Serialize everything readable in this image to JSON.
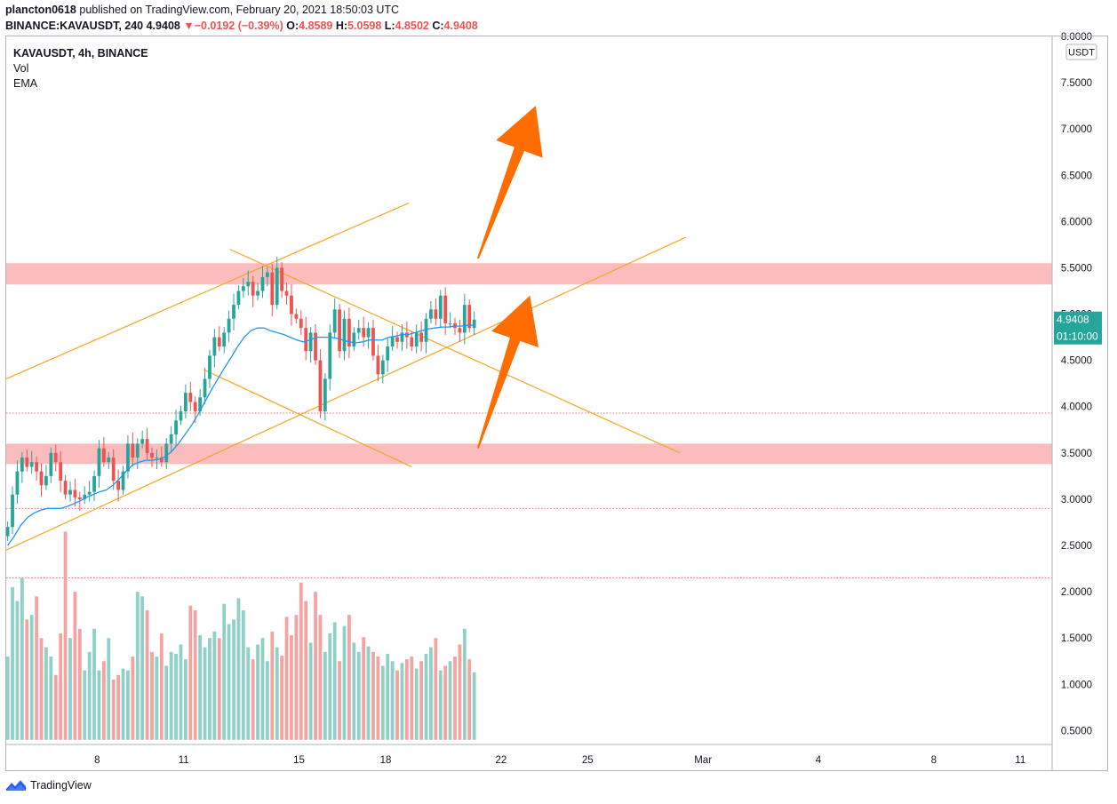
{
  "header": {
    "author": "plancton0618",
    "published_text": " published on TradingView.com, February 20, 2021 18:50:03 UTC"
  },
  "ohlc": {
    "symbol": "BINANCE:KAVAUSDT, 240",
    "price": "4.9408",
    "change_arrow": "▼",
    "change": "−0.0192 (−0.39%)",
    "o_label": "O:",
    "o": "4.8589",
    "h_label": "H:",
    "h": "5.0598",
    "l_label": "L:",
    "l": "4.8502",
    "c_label": "C:",
    "c": "4.9408"
  },
  "legend": {
    "title": "KAVAUSDT, 4h, BINANCE",
    "vol": "Vol",
    "ema": "EMA"
  },
  "price_axis": {
    "currency": "USDT",
    "last_price": "4.9408",
    "countdown": "01:10:00"
  },
  "footer": {
    "brand": "TradingView"
  },
  "colors": {
    "up": "#26a69a",
    "down": "#ef5350",
    "vol_up": "#8fd0c7",
    "vol_down": "#f4a3a2",
    "ema": "#2196f3",
    "trendline": "#f5a623",
    "zone": "#f8a5a7",
    "arrow": "#ff6d00",
    "dotted": "#e57373"
  },
  "chart_data": {
    "type": "candlestick",
    "symbol": "KAVAUSDT",
    "interval": "4h",
    "exchange": "BINANCE",
    "ylim": [
      0.35,
      8.0
    ],
    "y_ticks": [
      "8.0000",
      "7.5000",
      "7.0000",
      "6.5000",
      "6.0000",
      "5.5000",
      "5.0000",
      "4.5000",
      "4.0000",
      "3.5000",
      "3.0000",
      "2.5000",
      "2.0000",
      "1.5000",
      "1.0000",
      "0.5000"
    ],
    "x_ticks": [
      {
        "label": "8",
        "day": 8
      },
      {
        "label": "11",
        "day": 11
      },
      {
        "label": "15",
        "day": 15
      },
      {
        "label": "18",
        "day": 18
      },
      {
        "label": "22",
        "day": 22
      },
      {
        "label": "25",
        "day": 25
      },
      {
        "label": "Mar",
        "day": 29
      },
      {
        "label": "4",
        "day": 33
      },
      {
        "label": "8",
        "day": 37
      },
      {
        "label": "11",
        "day": 40
      }
    ],
    "x_range_days": [
      4.85,
      41.1
    ],
    "first_candle_day": 4.9,
    "candle_step_days": 0.1667,
    "closes": [
      2.7,
      3.05,
      3.3,
      3.45,
      3.35,
      3.4,
      3.3,
      3.15,
      3.25,
      3.5,
      3.4,
      3.2,
      3.05,
      3.1,
      3.02,
      3.0,
      3.05,
      3.08,
      3.25,
      3.55,
      3.4,
      3.45,
      3.2,
      3.1,
      3.3,
      3.6,
      3.45,
      3.6,
      3.65,
      3.5,
      3.45,
      3.45,
      3.4,
      3.6,
      3.7,
      3.85,
      3.95,
      4.15,
      4.05,
      3.95,
      4.1,
      4.3,
      4.55,
      4.75,
      4.65,
      4.8,
      4.95,
      5.1,
      5.25,
      5.3,
      5.35,
      5.2,
      5.25,
      5.4,
      5.45,
      5.1,
      5.5,
      5.25,
      5.2,
      5.0,
      4.95,
      4.85,
      4.6,
      4.8,
      4.5,
      3.95,
      4.3,
      4.8,
      5.05,
      4.6,
      4.95,
      4.65,
      4.8,
      4.85,
      4.75,
      4.85,
      4.55,
      4.35,
      4.5,
      4.65,
      4.75,
      4.7,
      4.8,
      4.75,
      4.65,
      4.8,
      4.7,
      4.95,
      5.05,
      4.95,
      5.2,
      4.9,
      4.9,
      4.85,
      4.8,
      5.1,
      4.85,
      4.94
    ],
    "volumes": [
      0.95,
      1.7,
      1.55,
      1.8,
      1.35,
      1.4,
      1.6,
      1.15,
      1.05,
      0.95,
      0.75,
      1.2,
      2.3,
      1.15,
      1.65,
      1.25,
      0.8,
      1.0,
      1.25,
      0.8,
      0.9,
      1.15,
      0.7,
      0.75,
      0.82,
      0.8,
      0.95,
      1.65,
      1.6,
      1.45,
      1.0,
      0.95,
      1.2,
      0.85,
      1.0,
      0.98,
      1.08,
      0.92,
      1.5,
      1.45,
      1.18,
      1.05,
      1.15,
      1.22,
      1.15,
      1.52,
      1.3,
      1.35,
      1.58,
      1.45,
      1.05,
      0.92,
      1.08,
      1.15,
      0.9,
      1.22,
      1.05,
      0.96,
      1.38,
      1.18,
      1.4,
      1.75,
      1.55,
      1.1,
      1.65,
      1.4,
      1.0,
      1.2,
      1.32,
      0.9,
      1.28,
      1.4,
      1.1,
      1.0,
      1.16,
      1.06,
      1.0,
      0.95,
      0.85,
      0.98,
      0.9,
      0.8,
      0.88,
      0.92,
      0.95,
      0.82,
      0.9,
      0.98,
      1.05,
      1.15,
      0.8,
      0.85,
      0.9,
      0.95,
      1.08,
      1.25,
      0.92,
      0.78
    ],
    "ema_values": [
      2.5,
      2.6,
      2.72,
      2.8,
      2.85,
      2.88,
      2.9,
      2.9,
      2.9,
      2.92,
      2.95,
      2.98,
      3.02,
      3.05,
      3.08,
      3.1,
      3.15,
      3.22,
      3.3,
      3.37,
      3.4,
      3.42,
      3.42,
      3.43,
      3.46,
      3.52,
      3.6,
      3.7,
      3.8,
      3.92,
      4.05,
      4.18,
      4.3,
      4.42,
      4.53,
      4.65,
      4.75,
      4.82,
      4.85,
      4.85,
      4.82,
      4.8,
      4.78,
      4.75,
      4.72,
      4.7,
      4.72,
      4.75,
      4.75,
      4.75,
      4.74,
      4.72,
      4.7,
      4.69,
      4.7,
      4.72,
      4.72,
      4.72,
      4.75,
      4.76,
      4.78,
      4.78,
      4.8,
      4.82,
      4.84,
      4.85,
      4.86,
      4.86,
      4.87,
      4.87,
      4.88,
      4.88
    ],
    "zones": [
      {
        "from": 5.32,
        "to": 5.55
      },
      {
        "from": 3.38,
        "to": 3.6
      }
    ],
    "support_levels": [
      3.93,
      2.9,
      2.15
    ],
    "trendlines": [
      {
        "d1": 4.85,
        "p1": 4.3,
        "d2": 18.8,
        "p2": 6.2
      },
      {
        "d1": 4.85,
        "p1": 2.45,
        "d2": 28.4,
        "p2": 5.83
      },
      {
        "d1": 12.6,
        "p1": 5.7,
        "d2": 28.2,
        "p2": 3.5
      },
      {
        "d1": 11.7,
        "p1": 4.4,
        "d2": 18.9,
        "p2": 3.35
      }
    ],
    "arrows": [
      {
        "d1": 21.2,
        "p1": 5.6,
        "d2": 23.2,
        "p2": 7.25
      },
      {
        "d1": 21.2,
        "p1": 3.55,
        "d2": 23.0,
        "p2": 5.2
      }
    ]
  }
}
